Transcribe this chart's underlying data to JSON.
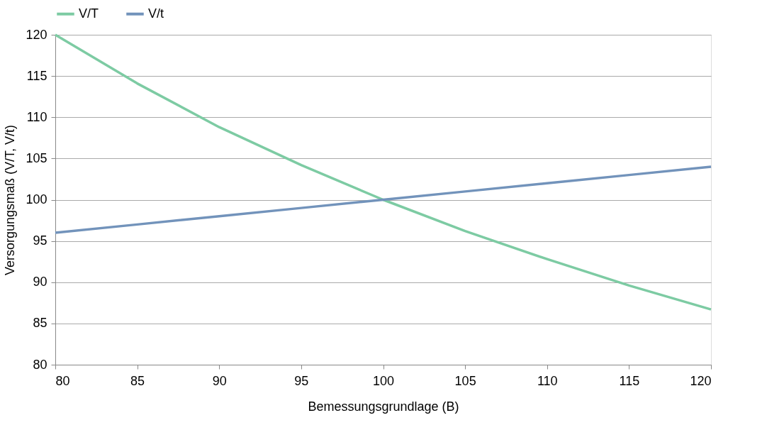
{
  "chart_data": {
    "type": "line",
    "xlabel": "Bemessungsgrundlage (B)",
    "ylabel": "Versorgungsmaß (V/T, V/t)",
    "x": [
      80,
      85,
      90,
      95,
      100,
      105,
      110,
      115,
      120
    ],
    "series": [
      {
        "name": "V/T",
        "color": "#7dcba3",
        "values": [
          120,
          114.1,
          108.8,
          104.2,
          100,
          96.2,
          92.8,
          89.6,
          86.7
        ]
      },
      {
        "name": "V/t",
        "color": "#7293bb",
        "values": [
          96,
          97,
          98,
          99,
          100,
          101,
          102,
          103,
          104
        ]
      }
    ],
    "xlim": [
      80,
      120
    ],
    "xticks": [
      80,
      85,
      90,
      95,
      100,
      105,
      110,
      115,
      120
    ],
    "ylim": [
      80,
      120
    ],
    "yticks": [
      80,
      85,
      90,
      95,
      100,
      105,
      110,
      115,
      120
    ],
    "grid": "y",
    "legend": "top",
    "marker": "none",
    "line_style": "solid"
  }
}
